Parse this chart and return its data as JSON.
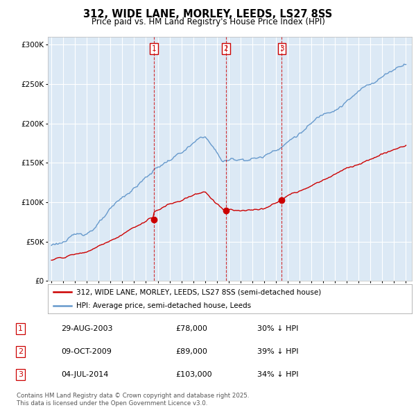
{
  "title": "312, WIDE LANE, MORLEY, LEEDS, LS27 8SS",
  "subtitle": "Price paid vs. HM Land Registry's House Price Index (HPI)",
  "legend_line1": "312, WIDE LANE, MORLEY, LEEDS, LS27 8SS (semi-detached house)",
  "legend_line2": "HPI: Average price, semi-detached house, Leeds",
  "sale_date1": "29-AUG-2003",
  "sale_price1": "£78,000",
  "sale_hpi1": "30% ↓ HPI",
  "sale_date2": "09-OCT-2009",
  "sale_price2": "£89,000",
  "sale_hpi2": "39% ↓ HPI",
  "sale_date3": "04-JUL-2014",
  "sale_price3": "£103,000",
  "sale_hpi3": "34% ↓ HPI",
  "footer": "Contains HM Land Registry data © Crown copyright and database right 2025.\nThis data is licensed under the Open Government Licence v3.0.",
  "red_color": "#cc0000",
  "blue_color": "#6699cc",
  "plot_bg_color": "#dce9f5",
  "grid_color": "#ffffff",
  "fig_bg_color": "#ffffff",
  "ylim": [
    0,
    310000
  ],
  "xlim_start": 1994.7,
  "xlim_end": 2025.5,
  "sale1_x": 2003.66,
  "sale1_y": 78000,
  "sale2_x": 2009.77,
  "sale2_y": 89000,
  "sale3_x": 2014.5,
  "sale3_y": 103000,
  "hpi_seed": 123,
  "red_seed": 456
}
